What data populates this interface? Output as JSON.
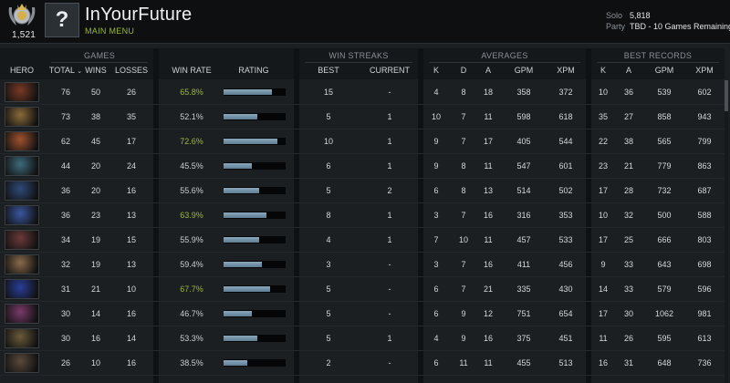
{
  "profile": {
    "medal_number": "1,521",
    "avatar_glyph": "?",
    "name": "InYourFuture",
    "main_menu": "MAIN MENU",
    "solo_label": "Solo",
    "solo_value": "5,818",
    "party_label": "Party",
    "party_value": "TBD - 10 Games Remaining"
  },
  "groups": {
    "games": "GAMES",
    "win_streaks": "WIN STREAKS",
    "averages": "AVERAGES",
    "best_records": "BEST RECORDS"
  },
  "columns": {
    "hero": "HERO",
    "total": "TOTAL",
    "wins": "WINS",
    "losses": "LOSSES",
    "win_rate": "WIN RATE",
    "rating": "RATING",
    "best": "BEST",
    "current": "CURRENT",
    "k": "K",
    "d": "D",
    "a": "A",
    "gpm": "GPM",
    "xpm": "XPM",
    "best_k": "K",
    "best_a": "A",
    "best_gpm": "GPM",
    "best_xpm": "XPM"
  },
  "colors": {
    "win_good": "#9ab83d",
    "win_normal": "#c9cdd0",
    "accent": "#9ab83d"
  },
  "rows": [
    {
      "hero_icon": "hero-portrait-1",
      "hero_color": "#7a3a24",
      "total": "76",
      "wins": "50",
      "losses": "26",
      "win_rate": "65.8%",
      "good": true,
      "rating": 0.78,
      "best": "15",
      "current": "-",
      "k": "4",
      "d": "8",
      "a": "18",
      "gpm": "358",
      "xpm": "372",
      "best_k": "10",
      "best_a": "36",
      "best_gpm": "539",
      "best_xpm": "602"
    },
    {
      "hero_icon": "hero-portrait-2",
      "hero_color": "#8a6a3a",
      "total": "73",
      "wins": "38",
      "losses": "35",
      "win_rate": "52.1%",
      "good": false,
      "rating": 0.55,
      "best": "5",
      "current": "1",
      "k": "10",
      "d": "7",
      "a": "11",
      "gpm": "598",
      "xpm": "618",
      "best_k": "35",
      "best_a": "27",
      "best_gpm": "858",
      "best_xpm": "943"
    },
    {
      "hero_icon": "hero-portrait-3",
      "hero_color": "#a0522d",
      "total": "62",
      "wins": "45",
      "losses": "17",
      "win_rate": "72.6%",
      "good": true,
      "rating": 0.87,
      "best": "10",
      "current": "1",
      "k": "9",
      "d": "7",
      "a": "17",
      "gpm": "405",
      "xpm": "544",
      "best_k": "22",
      "best_a": "38",
      "best_gpm": "565",
      "best_xpm": "799"
    },
    {
      "hero_icon": "hero-portrait-4",
      "hero_color": "#3d6a7a",
      "total": "44",
      "wins": "20",
      "losses": "24",
      "win_rate": "45.5%",
      "good": false,
      "rating": 0.45,
      "best": "6",
      "current": "1",
      "k": "9",
      "d": "8",
      "a": "11",
      "gpm": "547",
      "xpm": "601",
      "best_k": "23",
      "best_a": "21",
      "best_gpm": "779",
      "best_xpm": "863"
    },
    {
      "hero_icon": "hero-portrait-5",
      "hero_color": "#2e4a78",
      "total": "36",
      "wins": "20",
      "losses": "16",
      "win_rate": "55.6%",
      "good": false,
      "rating": 0.58,
      "best": "5",
      "current": "2",
      "k": "6",
      "d": "8",
      "a": "13",
      "gpm": "514",
      "xpm": "502",
      "best_k": "17",
      "best_a": "28",
      "best_gpm": "732",
      "best_xpm": "687"
    },
    {
      "hero_icon": "hero-portrait-6",
      "hero_color": "#3a56a0",
      "total": "36",
      "wins": "23",
      "losses": "13",
      "win_rate": "63.9%",
      "good": true,
      "rating": 0.69,
      "best": "8",
      "current": "1",
      "k": "3",
      "d": "7",
      "a": "16",
      "gpm": "316",
      "xpm": "353",
      "best_k": "10",
      "best_a": "32",
      "best_gpm": "500",
      "best_xpm": "588"
    },
    {
      "hero_icon": "hero-portrait-7",
      "hero_color": "#6a3a3a",
      "total": "34",
      "wins": "19",
      "losses": "15",
      "win_rate": "55.9%",
      "good": false,
      "rating": 0.58,
      "best": "4",
      "current": "1",
      "k": "7",
      "d": "10",
      "a": "11",
      "gpm": "457",
      "xpm": "533",
      "best_k": "17",
      "best_a": "25",
      "best_gpm": "666",
      "best_xpm": "803"
    },
    {
      "hero_icon": "hero-portrait-8",
      "hero_color": "#8a6a4a",
      "total": "32",
      "wins": "19",
      "losses": "13",
      "win_rate": "59.4%",
      "good": false,
      "rating": 0.62,
      "best": "3",
      "current": "-",
      "k": "3",
      "d": "7",
      "a": "16",
      "gpm": "411",
      "xpm": "456",
      "best_k": "9",
      "best_a": "33",
      "best_gpm": "643",
      "best_xpm": "698"
    },
    {
      "hero_icon": "hero-portrait-9",
      "hero_color": "#2a3e9a",
      "total": "31",
      "wins": "21",
      "losses": "10",
      "win_rate": "67.7%",
      "good": true,
      "rating": 0.75,
      "best": "5",
      "current": "-",
      "k": "6",
      "d": "7",
      "a": "21",
      "gpm": "335",
      "xpm": "430",
      "best_k": "14",
      "best_a": "33",
      "best_gpm": "579",
      "best_xpm": "596"
    },
    {
      "hero_icon": "hero-portrait-10",
      "hero_color": "#7a3a6a",
      "total": "30",
      "wins": "14",
      "losses": "16",
      "win_rate": "46.7%",
      "good": false,
      "rating": 0.45,
      "best": "5",
      "current": "-",
      "k": "6",
      "d": "9",
      "a": "12",
      "gpm": "751",
      "xpm": "654",
      "best_k": "17",
      "best_a": "30",
      "best_gpm": "1062",
      "best_xpm": "981"
    },
    {
      "hero_icon": "hero-portrait-11",
      "hero_color": "#6a5a3a",
      "total": "30",
      "wins": "16",
      "losses": "14",
      "win_rate": "53.3%",
      "good": false,
      "rating": 0.55,
      "best": "5",
      "current": "1",
      "k": "4",
      "d": "9",
      "a": "16",
      "gpm": "375",
      "xpm": "451",
      "best_k": "11",
      "best_a": "26",
      "best_gpm": "595",
      "best_xpm": "613"
    },
    {
      "hero_icon": "hero-portrait-12",
      "hero_color": "#5a4a3a",
      "total": "26",
      "wins": "10",
      "losses": "16",
      "win_rate": "38.5%",
      "good": false,
      "rating": 0.38,
      "best": "2",
      "current": "-",
      "k": "6",
      "d": "11",
      "a": "11",
      "gpm": "455",
      "xpm": "513",
      "best_k": "16",
      "best_a": "31",
      "best_gpm": "648",
      "best_xpm": "736"
    }
  ]
}
